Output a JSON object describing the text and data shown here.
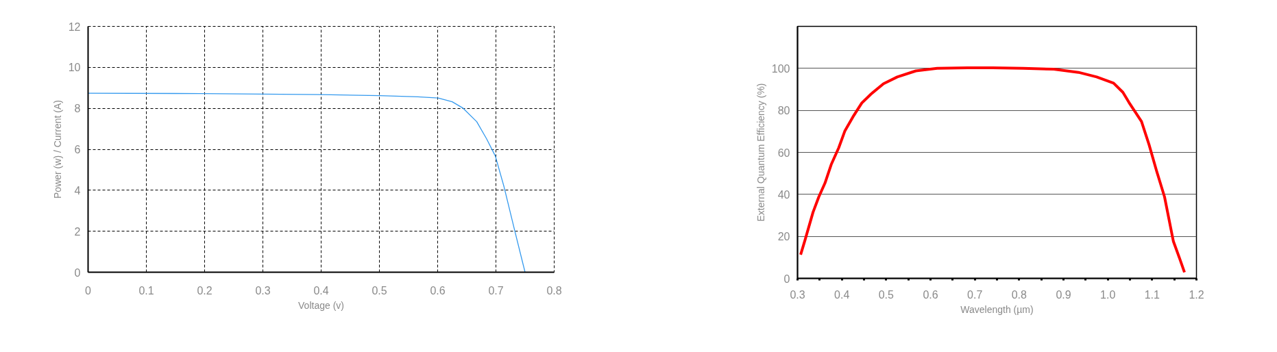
{
  "chart_data": [
    {
      "type": "line",
      "xlabel": "Voltage (v)",
      "ylabel": "Power (w) / Current (A)",
      "x": [
        0,
        0.193,
        0.4,
        0.5,
        0.566,
        0.601,
        0.625,
        0.643,
        0.667,
        0.684,
        0.699,
        0.714,
        0.732,
        0.75
      ],
      "series": [
        {
          "color": "#3399ee",
          "values": [
            8.74,
            8.72,
            8.67,
            8.62,
            8.56,
            8.5,
            8.32,
            8.02,
            7.35,
            6.51,
            5.67,
            4.16,
            2.06,
            0
          ]
        }
      ],
      "xlim": [
        0,
        0.8
      ],
      "ylim": [
        0,
        12
      ],
      "xticks": [
        0,
        0.1,
        0.2,
        0.3,
        0.4,
        0.5,
        0.6,
        0.7,
        0.8
      ],
      "yticks": [
        0,
        2,
        4,
        6,
        8,
        10,
        12
      ],
      "grid": true
    },
    {
      "type": "line",
      "xlabel": "Wavelength (µm)",
      "ylabel": "External Quantum Efficiency (%)",
      "x": [
        0.307,
        0.317,
        0.335,
        0.348,
        0.362,
        0.376,
        0.393,
        0.407,
        0.425,
        0.445,
        0.466,
        0.494,
        0.525,
        0.567,
        0.615,
        0.684,
        0.74,
        0.809,
        0.878,
        0.934,
        0.975,
        1.013,
        1.034,
        1.048,
        1.076,
        1.093,
        1.11,
        1.128,
        1.148,
        1.162,
        1.173
      ],
      "series": [
        {
          "color": "#ff0000",
          "values": [
            11.3,
            18.3,
            31.5,
            38.8,
            45.4,
            54.2,
            62.2,
            70.3,
            76.9,
            83.5,
            87.8,
            92.7,
            95.9,
            98.8,
            100,
            100.3,
            100.3,
            100,
            99.6,
            98.1,
            95.9,
            93,
            88.6,
            83.7,
            74.7,
            63.7,
            51.2,
            38.8,
            17.6,
            9.5,
            2.9
          ]
        }
      ],
      "xlim": [
        0.3,
        1.2
      ],
      "ylim": [
        0,
        120
      ],
      "xticks": [
        0.3,
        {
          "value": 0.35,
          "label": null
        },
        0.4,
        {
          "value": 0.45,
          "label": null
        },
        0.5,
        {
          "value": 0.55,
          "label": null
        },
        0.6,
        {
          "value": 0.65,
          "label": null
        },
        0.7,
        {
          "value": 0.75,
          "label": null
        },
        0.8,
        {
          "value": 0.85,
          "label": null
        },
        0.9,
        {
          "value": 0.95,
          "label": null
        },
        {
          "value": 1.0,
          "label": "1.0"
        },
        {
          "value": 1.05,
          "label": null
        },
        1.1,
        {
          "value": 1.15,
          "label": null
        },
        1.2
      ],
      "yticks": [
        0,
        20,
        40,
        60,
        80,
        100
      ],
      "grid": "y"
    }
  ]
}
